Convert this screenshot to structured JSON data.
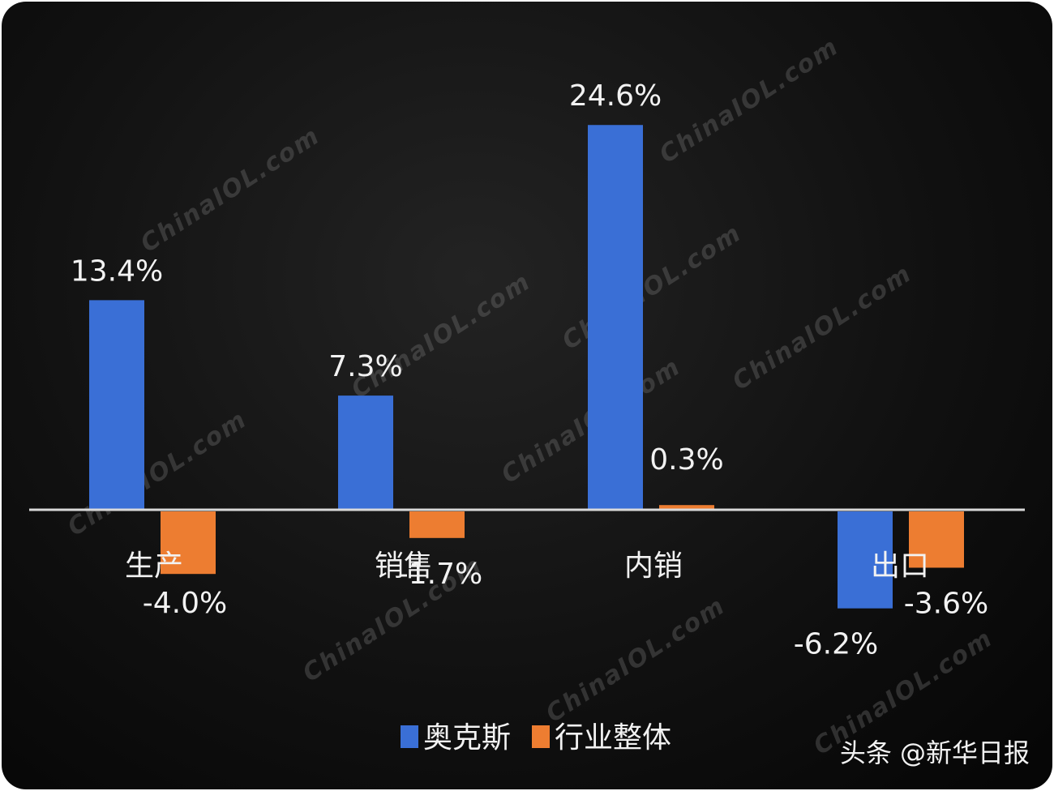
{
  "chart_data": {
    "type": "bar",
    "categories": [
      "生产",
      "销售",
      "内销",
      "出口"
    ],
    "series": [
      {
        "name": "奥克斯",
        "values": [
          13.4,
          7.3,
          24.6,
          -6.2
        ],
        "color": "#3a6fd6"
      },
      {
        "name": "行业整体",
        "values": [
          -4.0,
          -1.7,
          0.3,
          -3.6
        ],
        "color": "#ed7d31"
      }
    ],
    "data_labels": [
      [
        "13.4%",
        "7.3%",
        "24.6%",
        "-6.2%"
      ],
      [
        "-4.0%",
        "-1.7%",
        "0.3%",
        "-3.6%"
      ]
    ],
    "legend_position": "bottom",
    "grid": false,
    "title": "",
    "xlabel": "",
    "ylabel": ""
  },
  "watermark": "ChinaIOL.com",
  "source_credit": "头条 @新华日报"
}
